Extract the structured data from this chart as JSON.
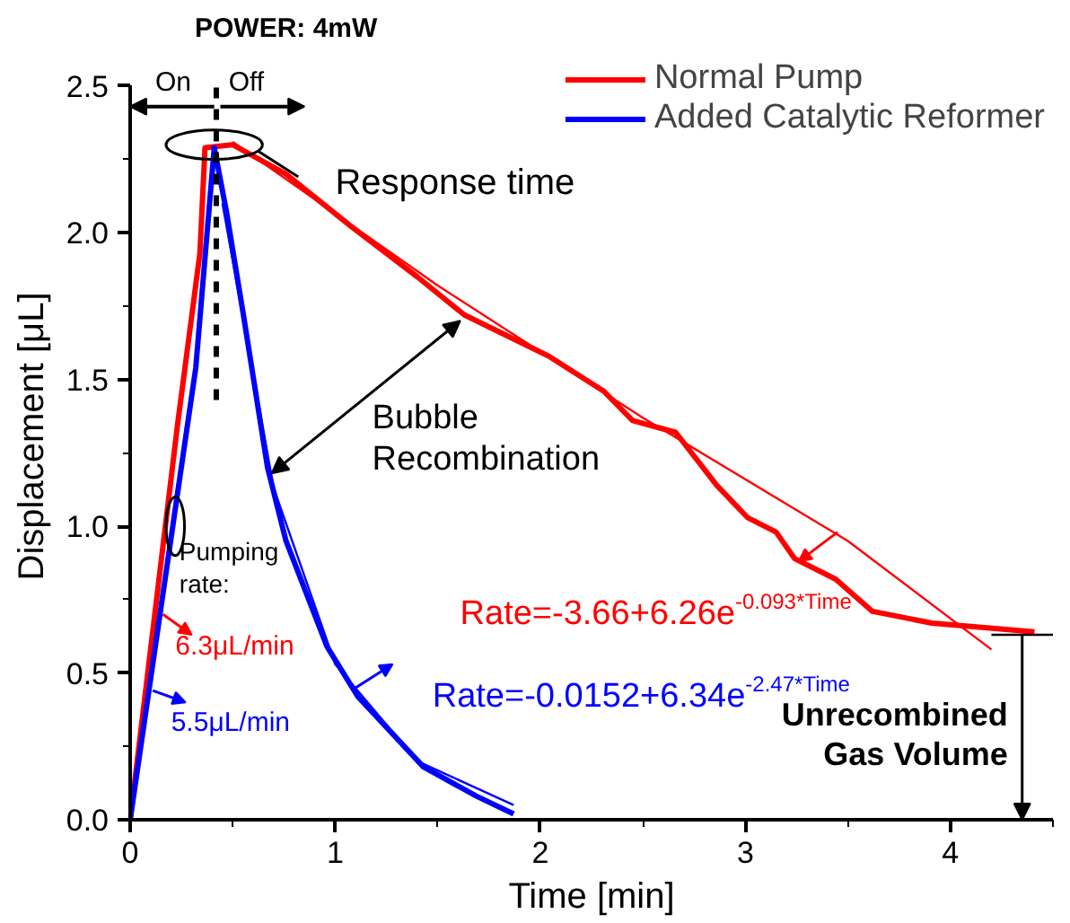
{
  "chart_data": {
    "type": "line",
    "xlabel": "Time [min]",
    "ylabel": "Displacement [μL]",
    "xlim": [
      0,
      4.5
    ],
    "ylim": [
      0,
      2.5
    ],
    "xticks": [
      0,
      1,
      2,
      3,
      4
    ],
    "yticks": [
      {
        "value": 0,
        "label": "0.0"
      },
      {
        "value": 0.5,
        "label": "0.5"
      },
      {
        "value": 1,
        "label": "1.0"
      },
      {
        "value": 1.5,
        "label": "1.5"
      },
      {
        "value": 2,
        "label": "2.0"
      },
      {
        "value": 2.5,
        "label": "2.5"
      }
    ],
    "grid": false,
    "legend": "top right",
    "marker": "none",
    "line_style": "solid",
    "series": [
      {
        "name": "Normal Pump",
        "color": "#ff0000",
        "x": [
          0,
          0.23,
          0.34,
          0.365,
          0.5,
          0.76,
          1.08,
          1.4,
          1.63,
          2.04,
          2.31,
          2.45,
          2.66,
          2.86,
          3.01,
          3.15,
          3.24,
          3.44,
          3.62,
          3.91,
          4.41
        ],
        "values": [
          0,
          1.34,
          1.93,
          2.29,
          2.3,
          2.2,
          2.02,
          1.85,
          1.72,
          1.58,
          1.46,
          1.36,
          1.32,
          1.14,
          1.03,
          0.98,
          0.89,
          0.82,
          0.71,
          0.67,
          0.64
        ]
      },
      {
        "name": "Added Catalytic Reformer",
        "color": "#0000ff",
        "x": [
          0,
          0.32,
          0.41,
          0.47,
          0.55,
          0.67,
          0.76,
          0.96,
          1.11,
          1.43,
          1.69,
          1.87
        ],
        "values": [
          0,
          1.54,
          2.29,
          2.07,
          1.73,
          1.2,
          0.95,
          0.59,
          0.42,
          0.18,
          0.08,
          0.02
        ]
      },
      {
        "type": "line",
        "color": "#ff0000",
        "x": [
          0.5,
          1.5,
          2.5,
          3.5,
          4.2
        ],
        "values": [
          2.31,
          1.82,
          1.37,
          0.95,
          0.58
        ]
      },
      {
        "type": "line",
        "color": "#0000ff",
        "x": [
          0.45,
          0.7,
          1.0,
          1.4,
          1.87
        ],
        "values": [
          2.1,
          1.13,
          0.53,
          0.2,
          0.05
        ]
      },
      {
        "type": "line",
        "color": "#000000",
        "x": [
          4.2,
          4.5
        ],
        "values": [
          0.63,
          0.63
        ]
      }
    ],
    "ref_lines": [
      {
        "axis": "x",
        "value": 0.42,
        "line_style": "dashed",
        "color": "#000000"
      }
    ],
    "annotations": [
      "POWER: 4mW",
      "On",
      "Off",
      {
        "text": "Response time",
        "x": 0.62,
        "y": 2.28
      },
      "Bubble Recombination",
      {
        "text": "Pumping rate:",
        "x": 0.22,
        "y": 1.0
      },
      "6.3μL/min",
      "5.5μL/min",
      "Rate=-3.66+6.26e$^{-0.093*Time}$",
      "Rate=-0.0152+6.34e$^{-2.47*Time}$",
      {
        "text": "Unrecombined Gas Volume",
        "x": 4.35,
        "y": 0.63
      }
    ]
  }
}
